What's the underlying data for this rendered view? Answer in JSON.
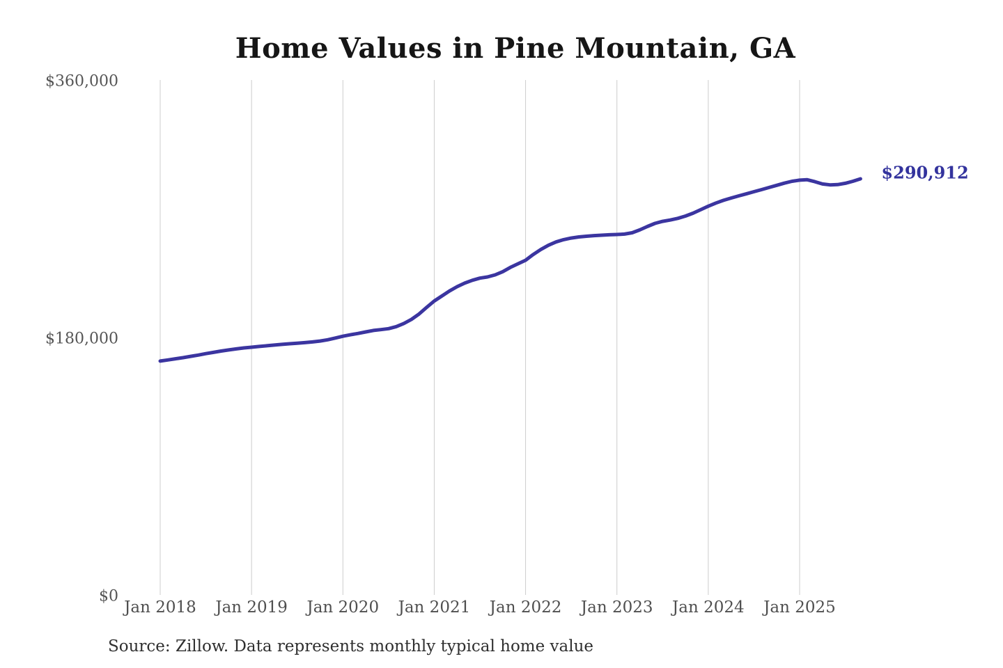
{
  "chart": {
    "title": "Home Values in Pine Mountain, GA",
    "source": "Source: Zillow. Data represents monthly typical home value",
    "end_value_label": "$290,912",
    "line_color": "#3b35a0",
    "end_label_color": "#33339d",
    "gridline_color": "#cccccc",
    "tick_color": "#4f4f4f"
  },
  "chart_data": {
    "type": "line",
    "title": "Home Values in Pine Mountain, GA",
    "series_name": "Typical home value (monthly)",
    "frequency": "monthly",
    "x_start": "Jan 2018",
    "x_end": "Sep 2025",
    "x_tick_labels": [
      "Jan 2018",
      "Jan 2019",
      "Jan 2020",
      "Jan 2021",
      "Jan 2022",
      "Jan 2023",
      "Jan 2024",
      "Jan 2025"
    ],
    "y_tick_labels": [
      "$0",
      "$180,000",
      "$360,000"
    ],
    "y_tick_values": [
      0,
      180000,
      360000
    ],
    "ylim": [
      0,
      360000
    ],
    "grid": "vertical-only",
    "legend": "none",
    "final_value": 290912,
    "values": [
      163500,
      164300,
      165100,
      165900,
      166800,
      167700,
      168700,
      169600,
      170500,
      171300,
      172000,
      172700,
      173200,
      173700,
      174200,
      174700,
      175200,
      175600,
      176000,
      176400,
      176900,
      177500,
      178400,
      179600,
      180900,
      181900,
      182800,
      183900,
      184900,
      185500,
      186200,
      187600,
      189800,
      192600,
      196400,
      201000,
      205500,
      209000,
      212500,
      215500,
      218000,
      220000,
      221500,
      222300,
      223800,
      226000,
      229000,
      231500,
      234000,
      238000,
      241500,
      244500,
      246800,
      248400,
      249500,
      250300,
      250800,
      251200,
      251500,
      251800,
      252000,
      252300,
      253200,
      255200,
      257600,
      259800,
      261200,
      262100,
      263300,
      264900,
      266900,
      269300,
      271800,
      274000,
      275900,
      277500,
      279000,
      280400,
      281900,
      283400,
      284900,
      286400,
      287900,
      289200,
      290000,
      290300,
      288900,
      287300,
      286700,
      286900,
      287800,
      289200,
      290912
    ]
  }
}
